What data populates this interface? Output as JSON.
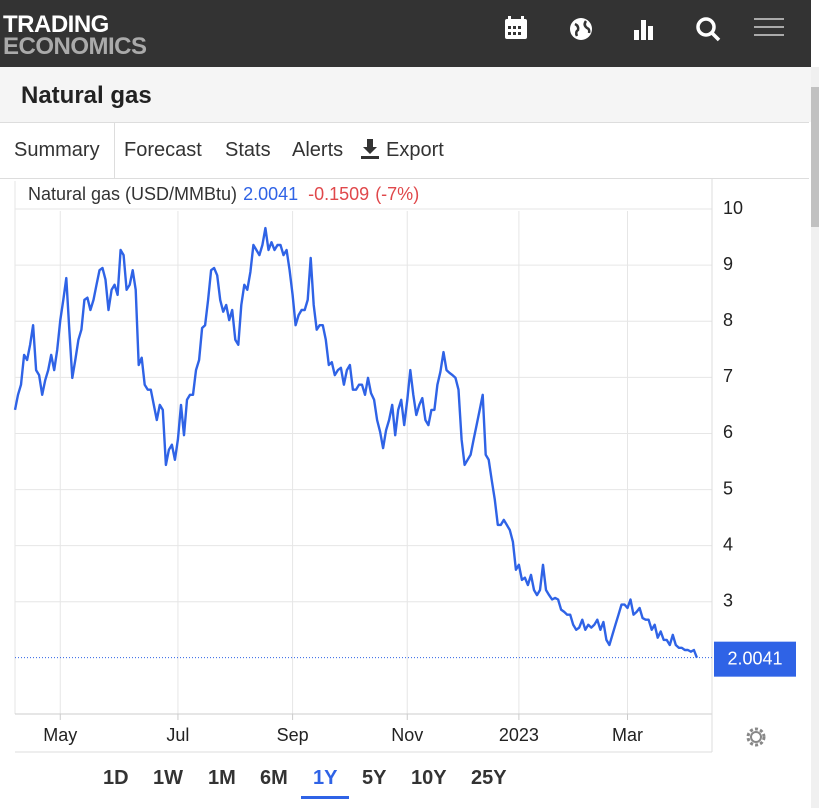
{
  "header": {
    "logo": [
      "TRADING",
      "ECONOMICS"
    ]
  },
  "page": {
    "title": "Natural gas"
  },
  "tabs": [
    "Summary",
    "Forecast",
    "Stats",
    "Alerts",
    "Export"
  ],
  "chart_data": {
    "type": "line",
    "title": "Natural gas (USD/MMBtu)",
    "change": -0.1509,
    "change_pct": "(-7%)",
    "color": "#2f63e6",
    "grid": true,
    "values": [
      6.42,
      6.69,
      6.87,
      7.4,
      7.31,
      7.58,
      7.93,
      7.13,
      7.04,
      6.69,
      6.95,
      7.13,
      7.4,
      7.13,
      7.49,
      8.02,
      8.38,
      8.77,
      7.85,
      6.99,
      7.31,
      7.67,
      7.85,
      8.38,
      8.42,
      8.2,
      8.38,
      8.65,
      8.91,
      8.95,
      8.74,
      8.2,
      8.56,
      8.65,
      8.47,
      9.27,
      9.18,
      8.56,
      8.65,
      8.91,
      8.56,
      7.22,
      7.35,
      6.87,
      6.78,
      6.78,
      6.51,
      6.24,
      6.51,
      6.42,
      5.44,
      5.71,
      5.8,
      5.53,
      5.89,
      6.51,
      5.97,
      6.6,
      6.69,
      6.69,
      7.13,
      7.31,
      7.88,
      7.93,
      8.38,
      8.91,
      8.95,
      8.82,
      8.38,
      8.17,
      8.29,
      8.02,
      8.2,
      7.67,
      7.58,
      8.29,
      8.65,
      8.56,
      8.88,
      9.36,
      9.27,
      9.18,
      9.36,
      9.66,
      9.27,
      9.41,
      9.27,
      9.36,
      9.36,
      9.18,
      9.27,
      8.91,
      8.47,
      7.93,
      8.11,
      8.2,
      8.2,
      8.38,
      9.13,
      8.29,
      7.85,
      7.93,
      7.93,
      7.67,
      7.22,
      7.27,
      7.04,
      7.13,
      7.17,
      6.87,
      7.13,
      7.22,
      6.78,
      6.78,
      6.87,
      6.87,
      6.69,
      6.99,
      6.72,
      6.6,
      6.24,
      6.03,
      5.74,
      6.06,
      6.24,
      6.51,
      5.97,
      6.42,
      6.6,
      6.15,
      6.6,
      7.13,
      6.69,
      6.33,
      6.51,
      6.63,
      6.24,
      6.15,
      6.42,
      6.42,
      6.87,
      7.1,
      7.45,
      7.13,
      7.08,
      7.04,
      6.99,
      6.78,
      5.89,
      5.44,
      5.53,
      5.62,
      5.89,
      6.15,
      6.42,
      6.69,
      5.62,
      5.53,
      5.17,
      4.82,
      4.37,
      4.37,
      4.46,
      4.37,
      4.28,
      4.07,
      3.57,
      3.66,
      3.39,
      3.43,
      3.3,
      3.48,
      3.21,
      3.12,
      3.21,
      3.66,
      3.21,
      3.12,
      3.04,
      3.07,
      3.04,
      2.86,
      2.82,
      2.77,
      2.77,
      2.59,
      2.5,
      2.54,
      2.68,
      2.5,
      2.59,
      2.54,
      2.59,
      2.68,
      2.5,
      2.64,
      2.32,
      2.23,
      2.41,
      2.59,
      2.77,
      2.95,
      2.95,
      2.89,
      3.04,
      2.77,
      2.82,
      2.89,
      2.71,
      2.68,
      2.68,
      2.5,
      2.59,
      2.36,
      2.47,
      2.32,
      2.32,
      2.23,
      2.41,
      2.23,
      2.18,
      2.18,
      2.14,
      2.14,
      2.11,
      2.14,
      2.0041
    ],
    "xlim": [
      0,
      231
    ],
    "xticks": [
      {
        "value": 15,
        "label": "May"
      },
      {
        "value": 54,
        "label": "Jul"
      },
      {
        "value": 92,
        "label": "Sep"
      },
      {
        "value": 130,
        "label": "Nov"
      },
      {
        "value": 167,
        "label": "2023"
      },
      {
        "value": 203,
        "label": "Mar"
      }
    ],
    "ylim": [
      1,
      10.5
    ],
    "yticks": [
      3,
      4,
      5,
      6,
      7,
      8,
      9,
      10
    ]
  },
  "ranges": [
    "1D",
    "1W",
    "1M",
    "6M",
    "1Y",
    "5Y",
    "10Y",
    "25Y"
  ],
  "active_range": 4
}
